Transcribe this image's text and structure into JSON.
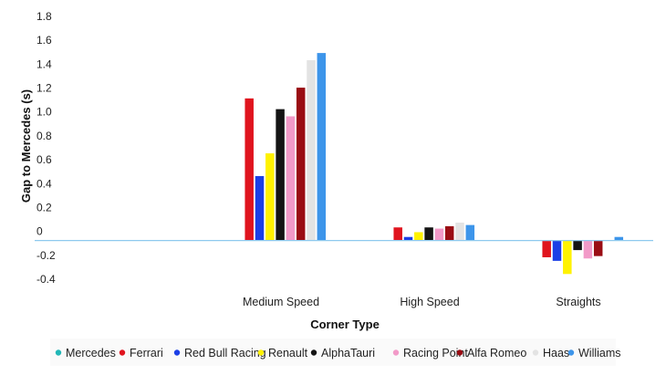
{
  "chart_data": {
    "type": "bar",
    "xlabel": "Corner Type",
    "ylabel": "Gap to Mercedes (s)",
    "ylim": [
      -0.4,
      1.8
    ],
    "yticks": [
      "1.8",
      "1.6",
      "1.4",
      "1.2",
      "1.0",
      "0.8",
      "0.6",
      "0.4",
      "0.2",
      "0",
      "-0.2",
      "-0.4"
    ],
    "categories": [
      "Medium Speed",
      "High Speed",
      "Straights"
    ],
    "grid": false,
    "legend_position": "bottom",
    "series": [
      {
        "name": "Mercedes",
        "color": "#22b7b7",
        "values": [
          0,
          0,
          0
        ]
      },
      {
        "name": "Ferrari",
        "color": "#e0141e",
        "values": [
          1.19,
          0.11,
          -0.14
        ]
      },
      {
        "name": "Red Bull Racing",
        "color": "#1c3fe6",
        "values": [
          0.54,
          0.03,
          -0.17
        ]
      },
      {
        "name": "Renault",
        "color": "#fff200",
        "values": [
          0.73,
          0.07,
          -0.28
        ]
      },
      {
        "name": "AlphaTauri",
        "color": "#141414",
        "values": [
          1.1,
          0.11,
          -0.08
        ]
      },
      {
        "name": "Racing Point",
        "color": "#f29ac8",
        "values": [
          1.04,
          0.1,
          -0.15
        ]
      },
      {
        "name": "Alfa Romeo",
        "color": "#9a0d14",
        "values": [
          1.28,
          0.12,
          -0.13
        ]
      },
      {
        "name": "Haas",
        "color": "#e3e3e3",
        "values": [
          1.51,
          0.15,
          0
        ]
      },
      {
        "name": "Williams",
        "color": "#3d95ea",
        "values": [
          1.57,
          0.13,
          0.03
        ]
      }
    ]
  }
}
